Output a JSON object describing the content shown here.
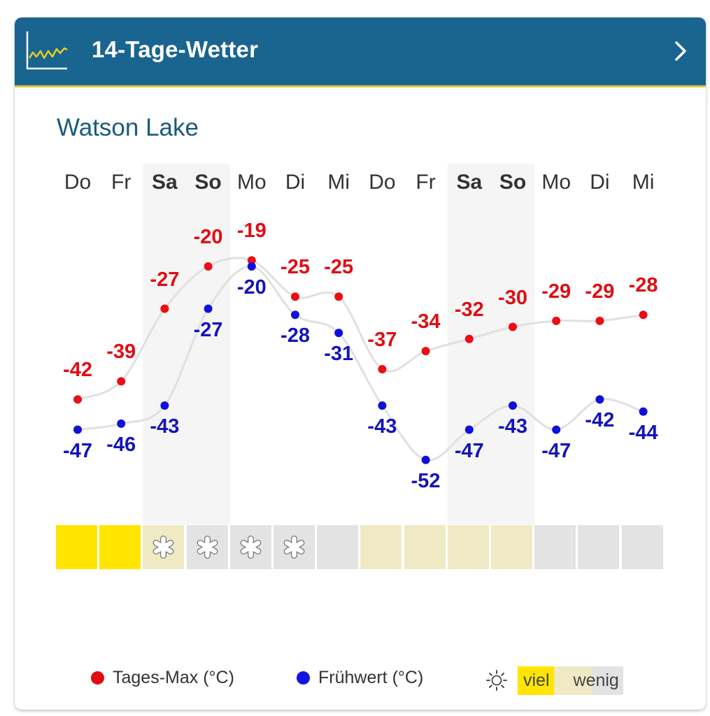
{
  "header": {
    "title": "14-Tage-Wetter",
    "logo_icon": "line-chart-icon",
    "nav_icon": "chevron-right-icon"
  },
  "location": "Watson Lake",
  "days": [
    "Do",
    "Fr",
    "Sa",
    "So",
    "Mo",
    "Di",
    "Mi",
    "Do",
    "Fr",
    "Sa",
    "So",
    "Mo",
    "Di",
    "Mi"
  ],
  "weekend_indices": [
    2,
    3,
    9,
    10
  ],
  "colors": {
    "header_bg": "#1a6490",
    "header_accent": "#d8c93a",
    "max": "#e00d14",
    "min": "#1414bb",
    "sun_high": "#ffe500",
    "sun_mid": "#efeac3",
    "sun_low": "#e3e3e3",
    "weekend_bg": "#f5f5f5",
    "curve": "#e0e0e0"
  },
  "chart_data": {
    "type": "line",
    "title": "14-Tage-Wetter – Watson Lake",
    "categories": [
      "Do",
      "Fr",
      "Sa",
      "So",
      "Mo",
      "Di",
      "Mi",
      "Do",
      "Fr",
      "Sa",
      "So",
      "Mo",
      "Di",
      "Mi"
    ],
    "series": [
      {
        "name": "Tages-Max (°C)",
        "color": "#e00d14",
        "values": [
          -42,
          -39,
          -27,
          -20,
          -19,
          -25,
          -25,
          -37,
          -34,
          -32,
          -30,
          -29,
          -29,
          -28
        ]
      },
      {
        "name": "Frühwert (°C)",
        "color": "#1414bb",
        "values": [
          -47,
          -46,
          -43,
          -27,
          -20,
          -28,
          -31,
          -43,
          -52,
          -47,
          -43,
          -47,
          -42,
          -44
        ]
      }
    ],
    "sunshine": [
      "high",
      "high",
      "mid",
      "low",
      "low",
      "low",
      "low",
      "mid",
      "mid",
      "mid",
      "mid",
      "low",
      "low",
      "low"
    ],
    "snow": [
      false,
      false,
      true,
      true,
      true,
      true,
      false,
      false,
      false,
      false,
      false,
      false,
      false,
      false
    ],
    "xlabel": "",
    "ylabel": "",
    "grid": false,
    "legend_position": "bottom"
  },
  "legend": {
    "max_label": "Tages-Max (°C)",
    "min_label": "Frühwert (°C)",
    "sun_icon": "sun-icon",
    "sun_high": "viel",
    "sun_low": "wenig"
  }
}
